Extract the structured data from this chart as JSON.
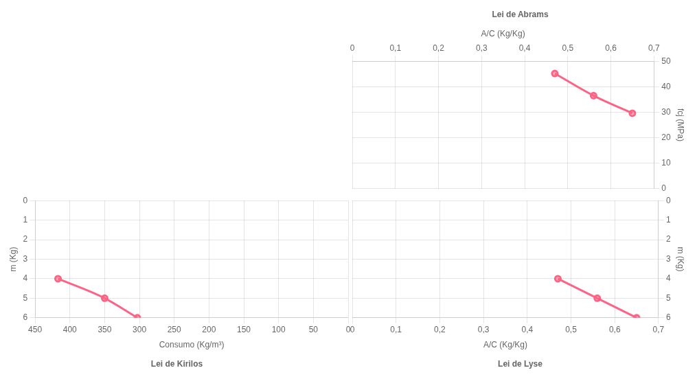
{
  "chart_data": [
    {
      "type": "line",
      "title": "Lei de Abrams",
      "xlabel": "A/C (Kg/Kg)",
      "ylabel": "fcj (MPa)",
      "x": [
        0.47,
        0.56,
        0.65
      ],
      "series": [
        {
          "color": "#ff6384",
          "values": [
            45.2,
            36.5,
            29.6
          ]
        }
      ],
      "xlim": [
        0,
        0.7
      ],
      "xticks": [
        0,
        {
          "value": 0.1,
          "label": "0,1"
        },
        {
          "value": 0.2,
          "label": "0,2"
        },
        {
          "value": 0.3,
          "label": "0,3"
        },
        {
          "value": 0.4,
          "label": "0,4"
        },
        {
          "value": 0.5,
          "label": "0,5"
        },
        {
          "value": 0.6,
          "label": "0,6"
        },
        {
          "value": 0.7,
          "label": "0,7"
        }
      ],
      "ylim": [
        0,
        50
      ],
      "yticks": [
        0,
        10,
        20,
        30,
        40,
        50
      ],
      "grid": true,
      "marker": "circle"
    },
    {
      "type": "line",
      "title": "Lei de Kirilos",
      "xlabel": "Consumo (Kg/m³)",
      "ylabel": "m (Kg)",
      "x": [
        417,
        350,
        303
      ],
      "series": [
        {
          "color": "#ff6384",
          "values": [
            4,
            5,
            6
          ]
        }
      ],
      "xlim": [
        450,
        0
      ],
      "xticks": [
        450,
        400,
        350,
        300,
        250,
        200,
        150,
        100,
        50,
        0
      ],
      "ylim": [
        6,
        0
      ],
      "yticks": [
        0,
        1,
        2,
        3,
        4,
        5,
        6
      ],
      "grid": true,
      "marker": "circle"
    },
    {
      "type": "line",
      "title": "Lei de Lyse",
      "xlabel": "A/C (Kg/Kg)",
      "ylabel": "m (Kg)",
      "x": [
        0.47,
        0.56,
        0.65
      ],
      "series": [
        {
          "color": "#ff6384",
          "values": [
            4,
            5,
            6
          ]
        }
      ],
      "xlim": [
        0,
        0.7
      ],
      "xticks": [
        0,
        {
          "value": 0.1,
          "label": "0,1"
        },
        {
          "value": 0.2,
          "label": "0,2"
        },
        {
          "value": 0.3,
          "label": "0,3"
        },
        {
          "value": 0.4,
          "label": "0,4"
        },
        {
          "value": 0.5,
          "label": "0,5"
        },
        {
          "value": 0.6,
          "label": "0,6"
        },
        {
          "value": 0.7,
          "label": "0,7"
        }
      ],
      "ylim": [
        6,
        0
      ],
      "yticks": [
        0,
        1,
        2,
        3,
        4,
        5,
        6
      ],
      "grid": true,
      "marker": "circle"
    }
  ]
}
